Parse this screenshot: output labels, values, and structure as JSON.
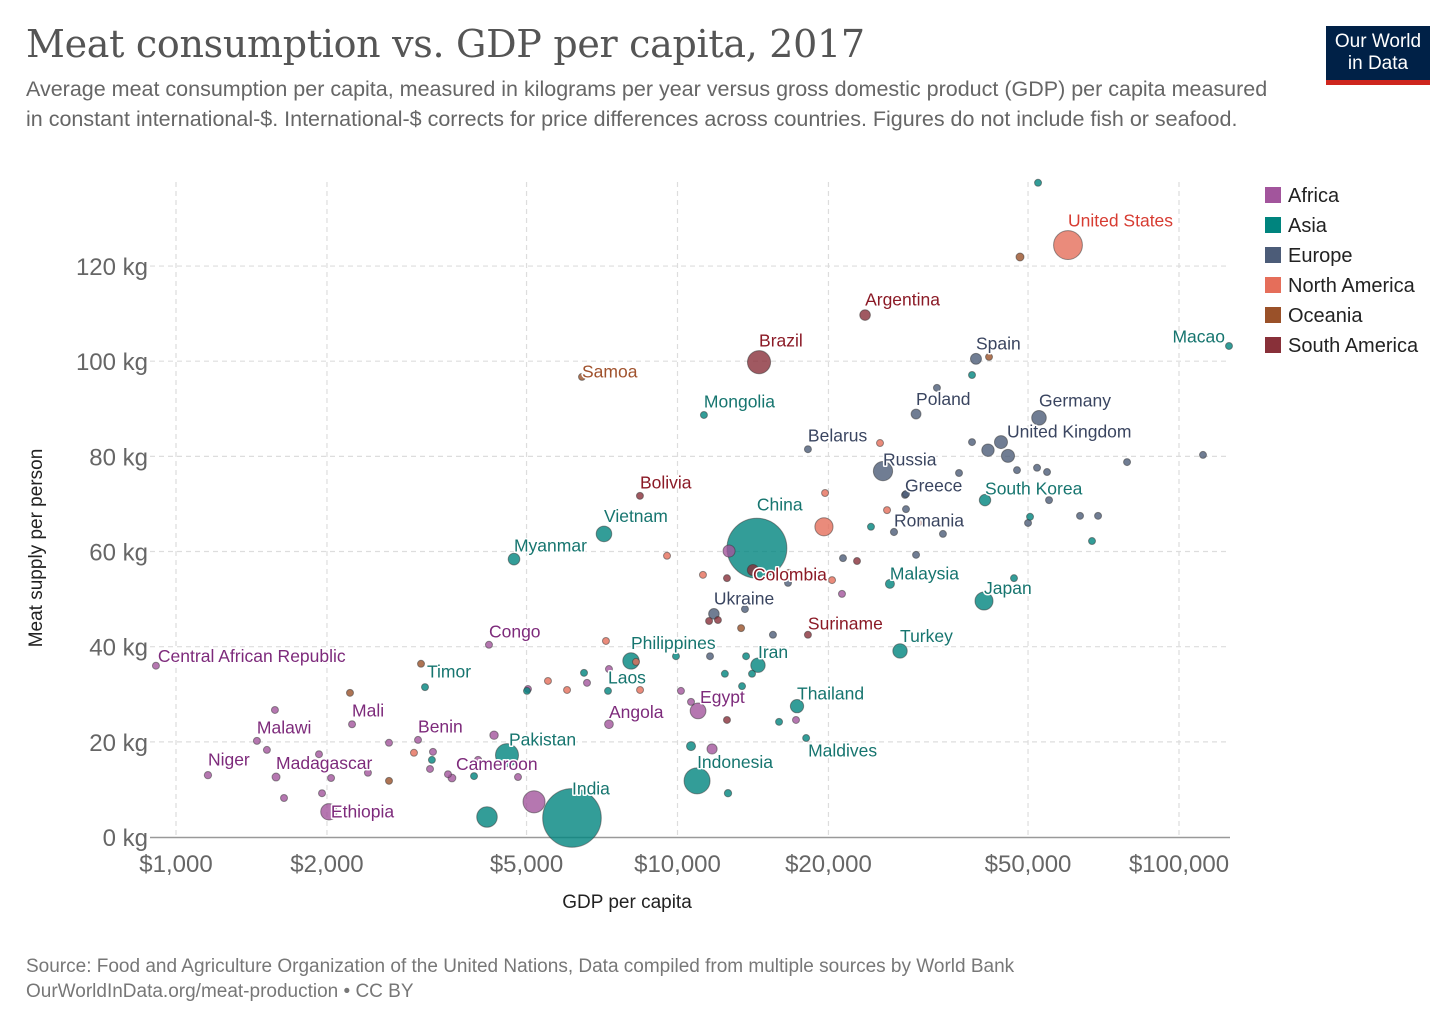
{
  "header": {
    "title": "Meat consumption vs. GDP per capita, 2017",
    "subtitle": "Average meat consumption per capita, measured in kilograms per year versus gross domestic product (GDP) per capita measured in constant international-$. International-$ corrects for price differences across countries. Figures do not include fish or seafood.",
    "logo_line1": "Our World",
    "logo_line2": "in Data"
  },
  "footer": {
    "source": "Source: Food and Agriculture Organization of the United Nations, Data compiled from multiple sources by World Bank",
    "license": "OurWorldInData.org/meat-production • CC BY"
  },
  "chart_data": {
    "type": "scatter",
    "title": "Meat consumption vs. GDP per capita, 2017",
    "xlabel": "GDP per capita",
    "ylabel": "Meat supply per person",
    "x_scale": "log",
    "xlim": [
      880,
      130000
    ],
    "ylim": [
      0,
      140
    ],
    "x_ticks": [
      1000,
      2000,
      5000,
      10000,
      20000,
      50000,
      100000
    ],
    "x_tick_labels": [
      "$1,000",
      "$2,000",
      "$5,000",
      "$10,000",
      "$20,000",
      "$50,000",
      "$100,000"
    ],
    "y_ticks": [
      0,
      20,
      40,
      60,
      80,
      100,
      120
    ],
    "y_tick_labels": [
      "0 kg",
      "20 kg",
      "40 kg",
      "60 kg",
      "80 kg",
      "100 kg",
      "120 kg"
    ],
    "grid": true,
    "bubble_size": "population",
    "legend_position": "right",
    "legend": [
      "Africa",
      "Asia",
      "Europe",
      "North America",
      "Oceania",
      "South America"
    ],
    "colors": {
      "Africa": "#a2559c",
      "Asia": "#00847e",
      "Europe": "#4c5c78",
      "North America": "#e56e5a",
      "Oceania": "#9a5129",
      "South America": "#883039"
    },
    "label_colors": {
      "Africa": "#7d2a7b",
      "Asia": "#16756f",
      "Europe": "#3a4560",
      "North America": "#d73c32",
      "Oceania": "#a0522d",
      "South America": "#8b1a26"
    },
    "points": [
      {
        "label": "Central African Republic",
        "c": "Africa",
        "gdp": 912,
        "meat": 36.0,
        "pop": 4.7
      },
      {
        "label": "Niger",
        "c": "Africa",
        "gdp": 1158,
        "meat": 13.0,
        "pop": 21
      },
      {
        "label": "Malawi",
        "c": "Africa",
        "gdp": 1450,
        "meat": 20.2,
        "pop": 18
      },
      {
        "label": "Madagascar",
        "c": "Africa",
        "gdp": 1583,
        "meat": 12.6,
        "pop": 25
      },
      {
        "label": "Ethiopia",
        "c": "Africa",
        "gdp": 2018,
        "meat": 5.3,
        "pop": 105
      },
      {
        "label": "Mali",
        "c": "Africa",
        "gdp": 2244,
        "meat": 23.7,
        "pop": 18
      },
      {
        "label": "Benin",
        "c": "Africa",
        "gdp": 3038,
        "meat": 20.4,
        "pop": 11
      },
      {
        "label": "Cameroon",
        "c": "Africa",
        "gdp": 3550,
        "meat": 12.4,
        "pop": 24
      },
      {
        "label": "Congo",
        "c": "Africa",
        "gdp": 4208,
        "meat": 40.4,
        "pop": 5
      },
      {
        "label": "Angola",
        "c": "Africa",
        "gdp": 7300,
        "meat": 23.7,
        "pop": 30
      },
      {
        "label": "Egypt",
        "c": "Africa",
        "gdp": 10990,
        "meat": 26.5,
        "pop": 97
      },
      {
        "label": "Pakistan",
        "c": "Asia",
        "gdp": 4571,
        "meat": 17.2,
        "pop": 207
      },
      {
        "label": "India",
        "c": "Asia",
        "gdp": 6160,
        "meat": 4.0,
        "pop": 1340
      },
      {
        "label": "Timor",
        "c": "Asia",
        "gdp": 3137,
        "meat": 31.5,
        "pop": 1.3
      },
      {
        "label": "Myanmar",
        "c": "Asia",
        "gdp": 4720,
        "meat": 58.4,
        "pop": 53
      },
      {
        "label": "Vietnam",
        "c": "Asia",
        "gdp": 7135,
        "meat": 63.7,
        "pop": 95
      },
      {
        "label": "Mongolia",
        "c": "Asia",
        "gdp": 11290,
        "meat": 88.7,
        "pop": 3
      },
      {
        "label": "China",
        "c": "Asia",
        "gdp": 14400,
        "meat": 60.7,
        "pop": 1400
      },
      {
        "label": "Macao",
        "c": "Asia",
        "gdp": 125800,
        "meat": 103.2,
        "pop": 0.6
      },
      {
        "label": "South Korea",
        "c": "Asia",
        "gdp": 41040,
        "meat": 70.8,
        "pop": 51
      },
      {
        "label": "Malaysia",
        "c": "Asia",
        "gdp": 26520,
        "meat": 53.2,
        "pop": 32
      },
      {
        "label": "Japan",
        "c": "Asia",
        "gdp": 40850,
        "meat": 49.6,
        "pop": 127
      },
      {
        "label": "Turkey",
        "c": "Asia",
        "gdp": 27780,
        "meat": 39.1,
        "pop": 81
      },
      {
        "label": "Iran",
        "c": "Asia",
        "gdp": 14470,
        "meat": 36.1,
        "pop": 81
      },
      {
        "label": "Philippines",
        "c": "Asia",
        "gdp": 8077,
        "meat": 37.0,
        "pop": 105
      },
      {
        "label": "Laos",
        "c": "Asia",
        "gdp": 7268,
        "meat": 30.7,
        "pop": 7
      },
      {
        "label": "Thailand",
        "c": "Asia",
        "gdp": 17310,
        "meat": 27.5,
        "pop": 69
      },
      {
        "label": "Maldives",
        "c": "Asia",
        "gdp": 18050,
        "meat": 20.8,
        "pop": 0.4
      },
      {
        "label": "Indonesia",
        "c": "Asia",
        "gdp": 10940,
        "meat": 11.8,
        "pop": 264
      },
      {
        "label": "Spain",
        "c": "Europe",
        "gdp": 39370,
        "meat": 100.5,
        "pop": 47
      },
      {
        "label": "Germany",
        "c": "Europe",
        "gdp": 52580,
        "meat": 88.1,
        "pop": 83
      },
      {
        "label": "Poland",
        "c": "Europe",
        "gdp": 29900,
        "meat": 88.9,
        "pop": 38
      },
      {
        "label": "Belarus",
        "c": "Europe",
        "gdp": 18200,
        "meat": 81.5,
        "pop": 9.5
      },
      {
        "label": "Russia",
        "c": "Europe",
        "gdp": 25690,
        "meat": 76.9,
        "pop": 145
      },
      {
        "label": "United Kingdom",
        "c": "Europe",
        "gdp": 44160,
        "meat": 83.0,
        "pop": 66
      },
      {
        "label": "Greece",
        "c": "Europe",
        "gdp": 28420,
        "meat": 71.9,
        "pop": 11
      },
      {
        "label": "Romania",
        "c": "Europe",
        "gdp": 27020,
        "meat": 64.1,
        "pop": 20
      },
      {
        "label": "Ukraine",
        "c": "Europe",
        "gdp": 11820,
        "meat": 46.9,
        "pop": 44
      },
      {
        "label": "United States",
        "c": "North America",
        "gdp": 60070,
        "meat": 124.4,
        "pop": 325
      },
      {
        "label": "Samoa",
        "c": "Oceania",
        "gdp": 6450,
        "meat": 96.7,
        "pop": 0.2
      },
      {
        "label": "Brazil",
        "c": "South America",
        "gdp": 14540,
        "meat": 99.8,
        "pop": 209
      },
      {
        "label": "Argentina",
        "c": "South America",
        "gdp": 23660,
        "meat": 109.7,
        "pop": 44
      },
      {
        "label": "Bolivia",
        "c": "South America",
        "gdp": 8416,
        "meat": 71.7,
        "pop": 11
      },
      {
        "label": "Colombia",
        "c": "South America",
        "gdp": 14140,
        "meat": 56.1,
        "pop": 49
      },
      {
        "label": "Suriname",
        "c": "South America",
        "gdp": 18200,
        "meat": 42.5,
        "pop": 0.6
      },
      {
        "c": "Africa",
        "gdp": 1575,
        "meat": 26.7,
        "pop": 8
      },
      {
        "c": "Africa",
        "gdp": 1518,
        "meat": 18.3,
        "pop": 3
      },
      {
        "c": "Africa",
        "gdp": 1642,
        "meat": 8.2,
        "pop": 5
      },
      {
        "c": "Africa",
        "gdp": 1928,
        "meat": 17.4,
        "pop": 3
      },
      {
        "c": "Africa",
        "gdp": 1955,
        "meat": 9.2,
        "pop": 4
      },
      {
        "c": "Africa",
        "gdp": 2038,
        "meat": 12.4,
        "pop": 12
      },
      {
        "c": "Africa",
        "gdp": 2414,
        "meat": 13.5,
        "pop": 4
      },
      {
        "c": "Africa",
        "gdp": 2659,
        "meat": 19.8,
        "pop": 2
      },
      {
        "c": "Africa",
        "gdp": 3254,
        "meat": 17.9,
        "pop": 8
      },
      {
        "c": "Africa",
        "gdp": 3210,
        "meat": 14.3,
        "pop": 6
      },
      {
        "c": "Africa",
        "gdp": 3486,
        "meat": 13.2,
        "pop": 15
      },
      {
        "c": "Africa",
        "gdp": 4003,
        "meat": 16.2,
        "pop": 20
      },
      {
        "c": "Africa",
        "gdp": 4307,
        "meat": 21.4,
        "pop": 28
      },
      {
        "c": "Africa",
        "gdp": 4808,
        "meat": 12.6,
        "pop": 12
      },
      {
        "c": "Africa",
        "gdp": 5175,
        "meat": 7.4,
        "pop": 190
      },
      {
        "c": "Africa",
        "gdp": 7300,
        "meat": 35.3,
        "pop": 14
      },
      {
        "c": "Africa",
        "gdp": 6600,
        "meat": 32.4,
        "pop": 2
      },
      {
        "c": "Africa",
        "gdp": 5033,
        "meat": 31.1,
        "pop": 4
      },
      {
        "c": "Africa",
        "gdp": 10160,
        "meat": 30.7,
        "pop": 2
      },
      {
        "c": "Africa",
        "gdp": 10640,
        "meat": 28.4,
        "pop": 6
      },
      {
        "c": "Africa",
        "gdp": 11720,
        "meat": 18.5,
        "pop": 40
      },
      {
        "c": "Africa",
        "gdp": 12670,
        "meat": 60.1,
        "pop": 57
      },
      {
        "c": "Africa",
        "gdp": 17230,
        "meat": 24.6,
        "pop": 2
      },
      {
        "c": "Africa",
        "gdp": 21280,
        "meat": 51.1,
        "pop": 2
      },
      {
        "c": "Asia",
        "gdp": 4170,
        "meat": 4.2,
        "pop": 165
      },
      {
        "c": "Asia",
        "gdp": 3929,
        "meat": 12.8,
        "pop": 5
      },
      {
        "c": "Asia",
        "gdp": 3238,
        "meat": 16.2,
        "pop": 3
      },
      {
        "c": "Asia",
        "gdp": 5010,
        "meat": 30.7,
        "pop": 3
      },
      {
        "c": "Asia",
        "gdp": 6510,
        "meat": 34.5,
        "pop": 16
      },
      {
        "c": "Asia",
        "gdp": 12430,
        "meat": 34.3,
        "pop": 4
      },
      {
        "c": "Asia",
        "gdp": 14080,
        "meat": 34.3,
        "pop": 3
      },
      {
        "c": "Asia",
        "gdp": 12610,
        "meat": 9.2,
        "pop": 21
      },
      {
        "c": "Asia",
        "gdp": 10640,
        "meat": 19.1,
        "pop": 32
      },
      {
        "c": "Asia",
        "gdp": 15940,
        "meat": 24.2,
        "pop": 6
      },
      {
        "c": "Asia",
        "gdp": 24310,
        "meat": 65.2,
        "pop": 8
      },
      {
        "c": "Asia",
        "gdp": 38660,
        "meat": 97.1,
        "pop": 8
      },
      {
        "c": "Asia",
        "gdp": 52350,
        "meat": 137.5,
        "pop": 7
      },
      {
        "c": "Asia",
        "gdp": 46880,
        "meat": 54.4,
        "pop": 3
      },
      {
        "c": "Asia",
        "gdp": 50460,
        "meat": 67.3,
        "pop": 4
      },
      {
        "c": "Asia",
        "gdp": 67070,
        "meat": 62.2,
        "pop": 4
      },
      {
        "c": "Asia",
        "gdp": 9930,
        "meat": 38.0,
        "pop": 3
      },
      {
        "c": "Asia",
        "gdp": 13450,
        "meat": 31.7,
        "pop": 3
      },
      {
        "c": "Asia",
        "gdp": 13700,
        "meat": 38.0,
        "pop": 2
      },
      {
        "c": "Europe",
        "gdp": 32910,
        "meat": 94.4,
        "pop": 4
      },
      {
        "c": "Europe",
        "gdp": 38660,
        "meat": 83.0,
        "pop": 5
      },
      {
        "c": "Europe",
        "gdp": 41600,
        "meat": 81.3,
        "pop": 60
      },
      {
        "c": "Europe",
        "gdp": 45600,
        "meat": 80.1,
        "pop": 67
      },
      {
        "c": "Europe",
        "gdp": 47530,
        "meat": 77.1,
        "pop": 5
      },
      {
        "c": "Europe",
        "gdp": 52110,
        "meat": 77.6,
        "pop": 8
      },
      {
        "c": "Europe",
        "gdp": 54560,
        "meat": 76.7,
        "pop": 5
      },
      {
        "c": "Europe",
        "gdp": 36420,
        "meat": 76.5,
        "pop": 3
      },
      {
        "c": "Europe",
        "gdp": 28550,
        "meat": 72.1,
        "pop": 10
      },
      {
        "c": "Europe",
        "gdp": 28550,
        "meat": 68.9,
        "pop": 2
      },
      {
        "c": "Europe",
        "gdp": 33830,
        "meat": 63.7,
        "pop": 3
      },
      {
        "c": "Europe",
        "gdp": 29900,
        "meat": 59.3,
        "pop": 4
      },
      {
        "c": "Europe",
        "gdp": 50000,
        "meat": 66.0,
        "pop": 9
      },
      {
        "c": "Europe",
        "gdp": 55060,
        "meat": 70.8,
        "pop": 5
      },
      {
        "c": "Europe",
        "gdp": 63480,
        "meat": 67.5,
        "pop": 5
      },
      {
        "c": "Europe",
        "gdp": 68960,
        "meat": 67.5,
        "pop": 5
      },
      {
        "c": "Europe",
        "gdp": 78780,
        "meat": 78.8,
        "pop": 5
      },
      {
        "c": "Europe",
        "gdp": 111650,
        "meat": 80.3,
        "pop": 0.6
      },
      {
        "c": "Europe",
        "gdp": 21380,
        "meat": 58.6,
        "pop": 7
      },
      {
        "c": "Europe",
        "gdp": 16610,
        "meat": 53.4,
        "pop": 3
      },
      {
        "c": "Europe",
        "gdp": 13630,
        "meat": 47.9,
        "pop": 2
      },
      {
        "c": "Europe",
        "gdp": 15500,
        "meat": 42.5,
        "pop": 2
      },
      {
        "c": "Europe",
        "gdp": 11610,
        "meat": 38.0,
        "pop": 2
      },
      {
        "c": "North America",
        "gdp": 19590,
        "meat": 65.2,
        "pop": 129
      },
      {
        "c": "North America",
        "gdp": 9530,
        "meat": 59.1,
        "pop": 1
      },
      {
        "c": "North America",
        "gdp": 11240,
        "meat": 55.1,
        "pop": 1
      },
      {
        "c": "North America",
        "gdp": 16690,
        "meat": 55.5,
        "pop": 4
      },
      {
        "c": "North America",
        "gdp": 20330,
        "meat": 54.0,
        "pop": 3
      },
      {
        "c": "North America",
        "gdp": 19690,
        "meat": 72.3,
        "pop": 1
      },
      {
        "c": "North America",
        "gdp": 25340,
        "meat": 82.8,
        "pop": 1
      },
      {
        "c": "North America",
        "gdp": 26170,
        "meat": 68.7,
        "pop": 1
      },
      {
        "c": "North America",
        "gdp": 7200,
        "meat": 41.2,
        "pop": 1
      },
      {
        "c": "North America",
        "gdp": 5517,
        "meat": 32.8,
        "pop": 2
      },
      {
        "c": "North America",
        "gdp": 6022,
        "meat": 30.9,
        "pop": 2
      },
      {
        "c": "North America",
        "gdp": 8420,
        "meat": 30.9,
        "pop": 2
      },
      {
        "c": "North America",
        "gdp": 2982,
        "meat": 17.7,
        "pop": 3
      },
      {
        "c": "North America",
        "gdp": 8265,
        "meat": 36.8,
        "pop": 5
      },
      {
        "c": "North America",
        "gdp": 30180,
        "meat": 66.0,
        "pop": 0.3
      },
      {
        "c": "Oceania",
        "gdp": 48190,
        "meat": 121.9,
        "pop": 25
      },
      {
        "c": "Oceania",
        "gdp": 3080,
        "meat": 36.4,
        "pop": 0.3
      },
      {
        "c": "Oceania",
        "gdp": 2223,
        "meat": 30.3,
        "pop": 0.6
      },
      {
        "c": "Oceania",
        "gdp": 2659,
        "meat": 11.8,
        "pop": 0.3
      },
      {
        "c": "Oceania",
        "gdp": 13390,
        "meat": 43.9,
        "pop": 1
      },
      {
        "c": "Oceania",
        "gdp": 41800,
        "meat": 100.9,
        "pop": 0.5
      },
      {
        "c": "South America",
        "gdp": 12550,
        "meat": 54.4,
        "pop": 6
      },
      {
        "c": "South America",
        "gdp": 22800,
        "meat": 58.0,
        "pop": 2
      },
      {
        "c": "South America",
        "gdp": 12550,
        "meat": 24.6,
        "pop": 11
      },
      {
        "c": "South America",
        "gdp": 11560,
        "meat": 45.4,
        "pop": 11
      },
      {
        "c": "South America",
        "gdp": 12040,
        "meat": 45.6,
        "pop": 3
      }
    ]
  }
}
